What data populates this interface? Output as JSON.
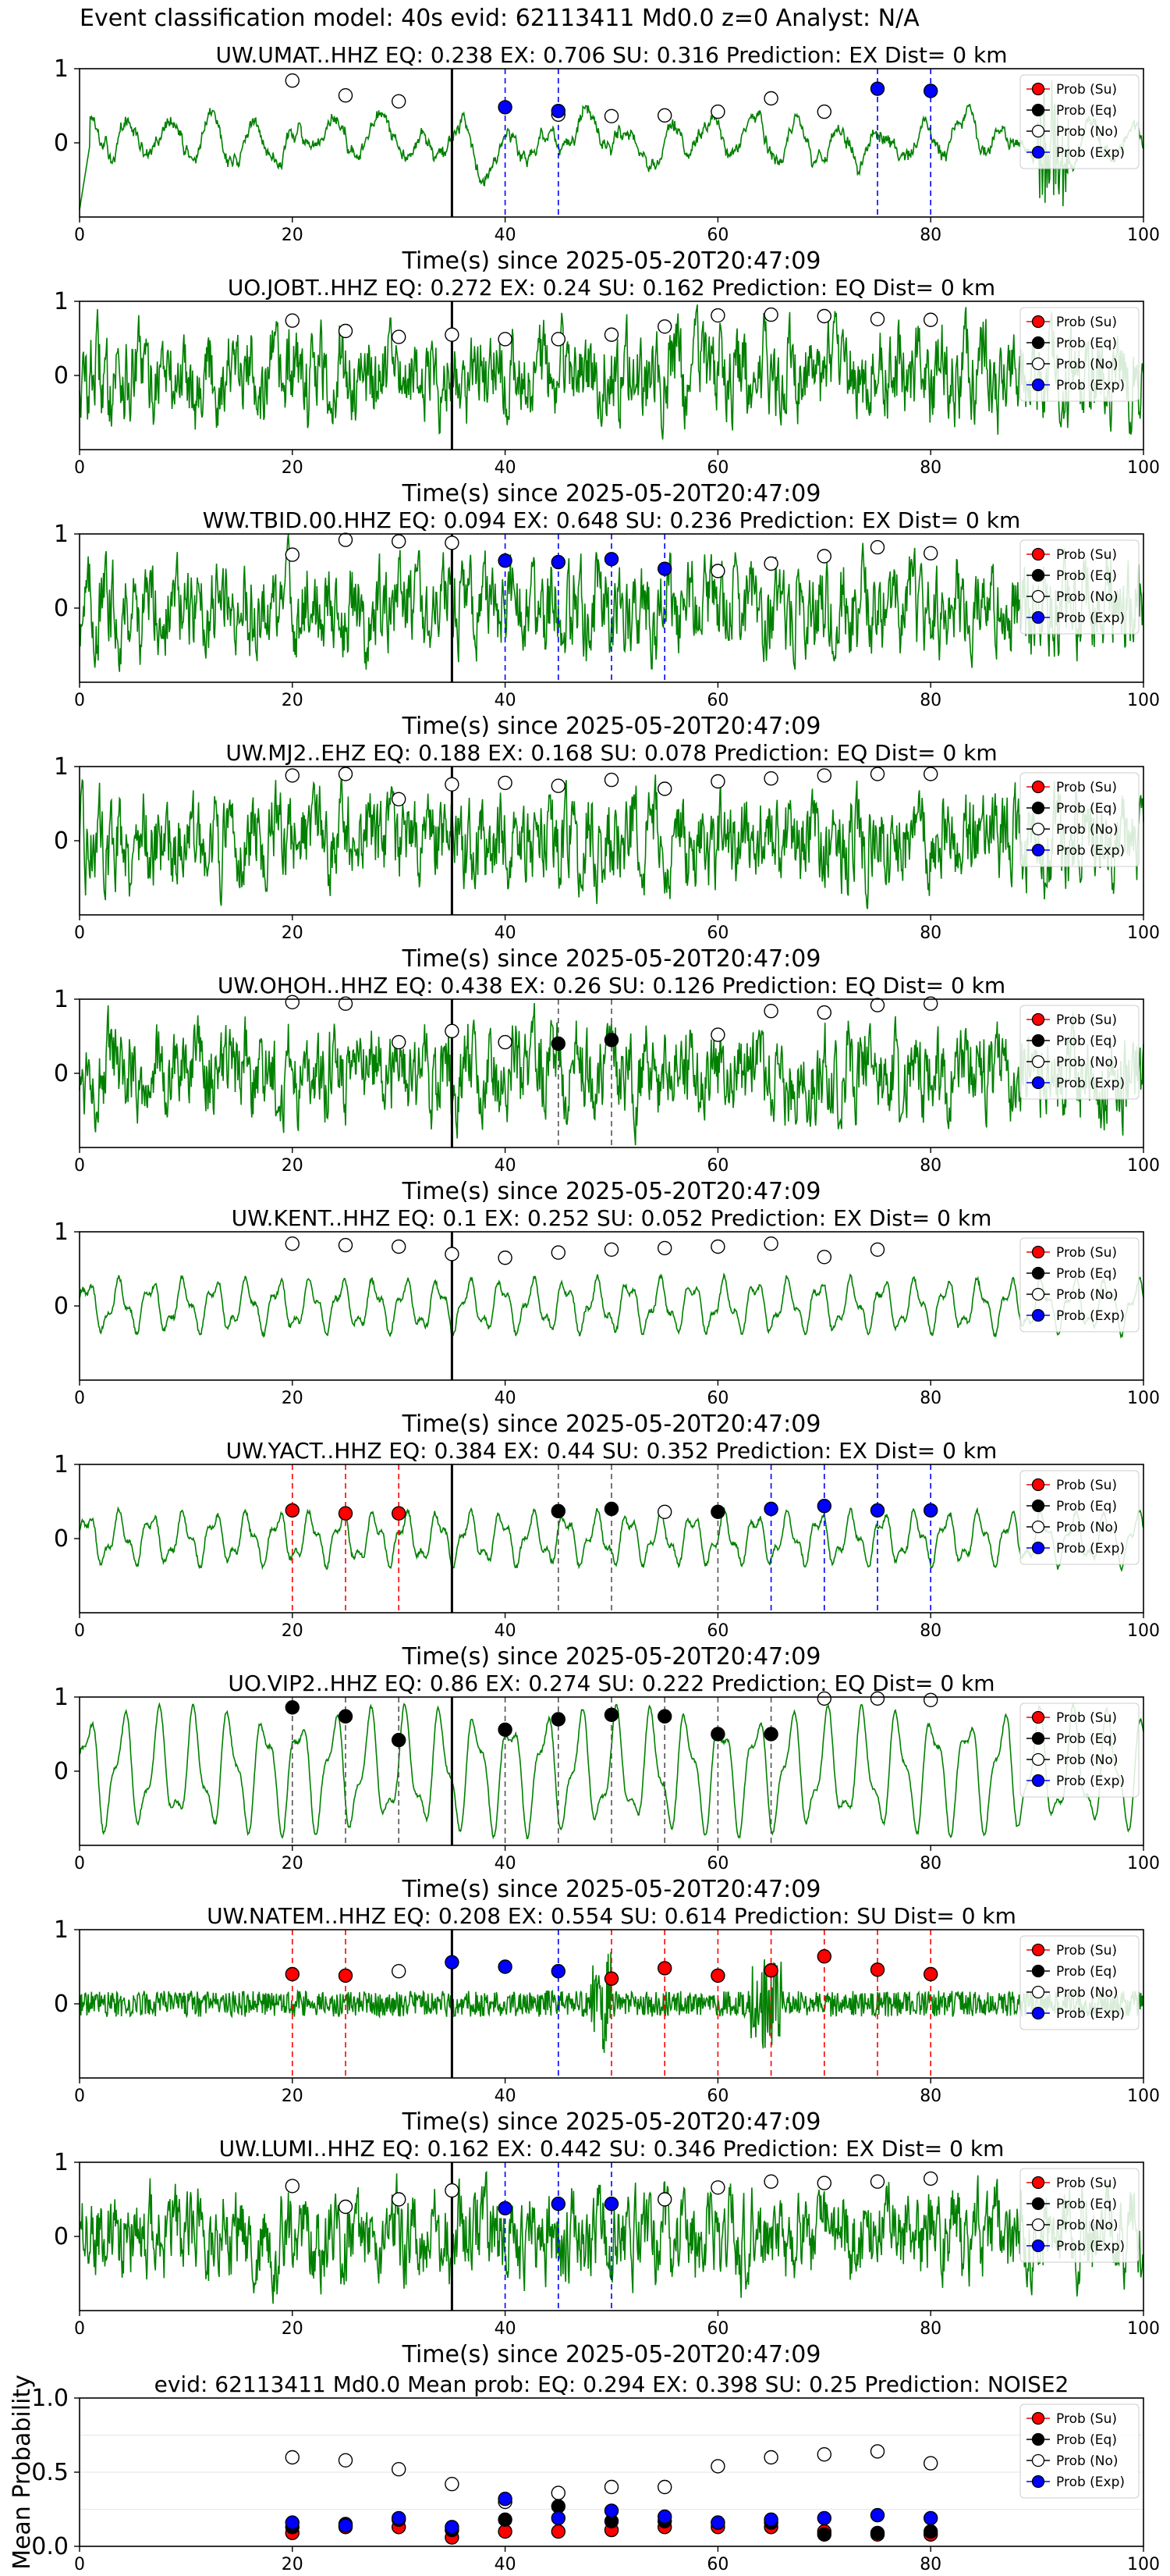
{
  "page": {
    "title": "Event classification model: 40s evid: 62113411 Md0.0 z=0 Analyst: N/A"
  },
  "colors": {
    "trace": "#008000",
    "su": "#ff0000",
    "eq": "#000000",
    "no": "#ffffff",
    "exp": "#0000ff",
    "su_line": "#ff0000",
    "eq_line": "#555555",
    "exp_line": "#0000ff",
    "onset_line": "#000000"
  },
  "legend": [
    "Prob (Su)",
    "Prob (Eq)",
    "Prob (No)",
    "Prob (Exp)"
  ],
  "chart_data": [
    {
      "type": "line",
      "title": "UW.UMAT..HHZ   EQ: 0.238  EX: 0.706  SU: 0.316   Prediction: EX    Dist= 0 km",
      "xlabel": "Time(s) since 2025-05-20T20:47:09",
      "xlim": [
        0,
        100
      ],
      "ylim": [
        -1,
        1
      ],
      "xticks": [
        0,
        20,
        40,
        60,
        80,
        100
      ],
      "yticks": [
        0,
        1
      ],
      "onset": 35,
      "trace_style": "smooth",
      "legend": "upper-right",
      "series": [
        {
          "name": "Prob (No)",
          "x": [
            20,
            25,
            30,
            45,
            50,
            55,
            60,
            65,
            70
          ],
          "values": [
            0.84,
            0.64,
            0.56,
            0.38,
            0.36,
            0.37,
            0.42,
            0.6,
            0.42
          ]
        },
        {
          "name": "Prob (Exp)",
          "x": [
            40,
            45,
            75,
            80
          ],
          "values": [
            0.48,
            0.43,
            0.73,
            0.7
          ]
        }
      ],
      "vlines": [
        {
          "x": 40,
          "color": "exp"
        },
        {
          "x": 45,
          "color": "exp"
        },
        {
          "x": 75,
          "color": "exp"
        },
        {
          "x": 80,
          "color": "exp"
        }
      ]
    },
    {
      "type": "line",
      "title": "UO.JOBT..HHZ   EQ: 0.272  EX: 0.24  SU: 0.162   Prediction: EQ    Dist= 0 km",
      "xlabel": "Time(s) since 2025-05-20T20:47:09",
      "xlim": [
        0,
        100
      ],
      "ylim": [
        -1,
        1
      ],
      "xticks": [
        0,
        20,
        40,
        60,
        80,
        100
      ],
      "yticks": [
        0,
        1
      ],
      "onset": 35,
      "trace_style": "noisy",
      "legend": "upper-right",
      "series": [
        {
          "name": "Prob (No)",
          "x": [
            20,
            25,
            30,
            35,
            40,
            45,
            50,
            55,
            60,
            65,
            70,
            75,
            80
          ],
          "values": [
            0.74,
            0.6,
            0.52,
            0.55,
            0.49,
            0.49,
            0.55,
            0.66,
            0.81,
            0.82,
            0.8,
            0.76,
            0.75
          ]
        }
      ],
      "vlines": []
    },
    {
      "type": "line",
      "title": "WW.TBID.00.HHZ   EQ: 0.094  EX: 0.648  SU: 0.236   Prediction: EX    Dist= 0 km",
      "xlabel": "Time(s) since 2025-05-20T20:47:09",
      "xlim": [
        0,
        100
      ],
      "ylim": [
        -1,
        1
      ],
      "xticks": [
        0,
        20,
        40,
        60,
        80,
        100
      ],
      "yticks": [
        0,
        1
      ],
      "onset": 35,
      "trace_style": "noisy",
      "legend": "upper-right",
      "series": [
        {
          "name": "Prob (No)",
          "x": [
            20,
            25,
            30,
            35,
            60,
            65,
            70,
            75,
            80
          ],
          "values": [
            0.72,
            0.92,
            0.9,
            0.88,
            0.5,
            0.6,
            0.7,
            0.82,
            0.74
          ]
        },
        {
          "name": "Prob (Exp)",
          "x": [
            40,
            45,
            50,
            55
          ],
          "values": [
            0.64,
            0.62,
            0.66,
            0.53
          ]
        }
      ],
      "vlines": [
        {
          "x": 40,
          "color": "exp"
        },
        {
          "x": 45,
          "color": "exp"
        },
        {
          "x": 50,
          "color": "exp"
        },
        {
          "x": 55,
          "color": "exp"
        }
      ]
    },
    {
      "type": "line",
      "title": "UW.MJ2..EHZ   EQ: 0.188  EX: 0.168  SU: 0.078   Prediction: EQ    Dist= 0 km",
      "xlabel": "Time(s) since 2025-05-20T20:47:09",
      "xlim": [
        0,
        100
      ],
      "ylim": [
        -1,
        1
      ],
      "xticks": [
        0,
        20,
        40,
        60,
        80,
        100
      ],
      "yticks": [
        0,
        1
      ],
      "onset": 35,
      "trace_style": "noisy",
      "legend": "upper-right",
      "series": [
        {
          "name": "Prob (No)",
          "x": [
            20,
            25,
            30,
            35,
            40,
            45,
            50,
            55,
            60,
            65,
            70,
            75,
            80
          ],
          "values": [
            0.88,
            0.9,
            0.56,
            0.76,
            0.78,
            0.74,
            0.82,
            0.7,
            0.8,
            0.84,
            0.88,
            0.9,
            0.9
          ]
        }
      ],
      "vlines": []
    },
    {
      "type": "line",
      "title": "UW.OHOH..HHZ   EQ: 0.438  EX: 0.26  SU: 0.126   Prediction: EQ    Dist= 0 km",
      "xlabel": "Time(s) since 2025-05-20T20:47:09",
      "xlim": [
        0,
        100
      ],
      "ylim": [
        -1,
        1
      ],
      "xticks": [
        0,
        20,
        40,
        60,
        80,
        100
      ],
      "yticks": [
        0,
        1
      ],
      "onset": 35,
      "trace_style": "noisy",
      "legend": "upper-right",
      "series": [
        {
          "name": "Prob (No)",
          "x": [
            20,
            25,
            30,
            35,
            40,
            60,
            65,
            70,
            75,
            80
          ],
          "values": [
            0.96,
            0.94,
            0.42,
            0.57,
            0.42,
            0.52,
            0.84,
            0.82,
            0.92,
            0.94
          ]
        },
        {
          "name": "Prob (Eq)",
          "x": [
            45,
            50
          ],
          "values": [
            0.4,
            0.45
          ]
        }
      ],
      "vlines": [
        {
          "x": 45,
          "color": "eq"
        },
        {
          "x": 50,
          "color": "eq"
        }
      ]
    },
    {
      "type": "line",
      "title": "UW.KENT..HHZ   EQ: 0.1  EX: 0.252  SU: 0.052   Prediction: EX    Dist= 0 km",
      "xlabel": "Time(s) since 2025-05-20T20:47:09",
      "xlim": [
        0,
        100
      ],
      "ylim": [
        -1,
        1
      ],
      "xticks": [
        0,
        20,
        40,
        60,
        80,
        100
      ],
      "yticks": [
        0,
        1
      ],
      "onset": 35,
      "trace_style": "wave",
      "legend": "upper-right",
      "series": [
        {
          "name": "Prob (No)",
          "x": [
            20,
            25,
            30,
            35,
            40,
            45,
            50,
            55,
            60,
            65,
            70,
            75
          ],
          "values": [
            0.84,
            0.82,
            0.8,
            0.7,
            0.65,
            0.72,
            0.76,
            0.78,
            0.8,
            0.84,
            0.66,
            0.76
          ]
        }
      ],
      "vlines": []
    },
    {
      "type": "line",
      "title": "UW.YACT..HHZ   EQ: 0.384  EX: 0.44  SU: 0.352   Prediction: EX    Dist= 0 km",
      "xlabel": "Time(s) since 2025-05-20T20:47:09",
      "xlim": [
        0,
        100
      ],
      "ylim": [
        -1,
        1
      ],
      "xticks": [
        0,
        20,
        40,
        60,
        80,
        100
      ],
      "yticks": [
        0,
        1
      ],
      "onset": 35,
      "trace_style": "wave",
      "legend": "upper-right",
      "series": [
        {
          "name": "Prob (Su)",
          "x": [
            20,
            25,
            30
          ],
          "values": [
            0.38,
            0.34,
            0.34
          ]
        },
        {
          "name": "Prob (Eq)",
          "x": [
            45,
            50,
            60
          ],
          "values": [
            0.37,
            0.4,
            0.36
          ]
        },
        {
          "name": "Prob (No)",
          "x": [
            55
          ],
          "values": [
            0.36
          ]
        },
        {
          "name": "Prob (Exp)",
          "x": [
            65,
            70,
            75,
            80
          ],
          "values": [
            0.4,
            0.44,
            0.38,
            0.38
          ]
        }
      ],
      "vlines": [
        {
          "x": 20,
          "color": "su"
        },
        {
          "x": 25,
          "color": "su"
        },
        {
          "x": 30,
          "color": "su"
        },
        {
          "x": 45,
          "color": "eq"
        },
        {
          "x": 50,
          "color": "eq"
        },
        {
          "x": 60,
          "color": "eq"
        },
        {
          "x": 65,
          "color": "exp"
        },
        {
          "x": 70,
          "color": "exp"
        },
        {
          "x": 75,
          "color": "exp"
        },
        {
          "x": 80,
          "color": "exp"
        }
      ]
    },
    {
      "type": "line",
      "title": "UO.VIP2..HHZ   EQ: 0.86  EX: 0.274  SU: 0.222   Prediction: EQ    Dist= 0 km",
      "xlabel": "Time(s) since 2025-05-20T20:47:09",
      "xlim": [
        0,
        100
      ],
      "ylim": [
        -1,
        1
      ],
      "xticks": [
        0,
        20,
        40,
        60,
        80,
        100
      ],
      "yticks": [
        0,
        1
      ],
      "onset": 35,
      "trace_style": "bigwave",
      "legend": "upper-right",
      "series": [
        {
          "name": "Prob (Eq)",
          "x": [
            20,
            25,
            30,
            40,
            45,
            50,
            55,
            60,
            65
          ],
          "values": [
            0.86,
            0.74,
            0.42,
            0.56,
            0.7,
            0.76,
            0.74,
            0.5,
            0.5
          ]
        },
        {
          "name": "Prob (No)",
          "x": [
            70,
            75,
            80
          ],
          "values": [
            0.98,
            0.98,
            0.96
          ]
        }
      ],
      "vlines": [
        {
          "x": 20,
          "color": "eq"
        },
        {
          "x": 25,
          "color": "eq"
        },
        {
          "x": 30,
          "color": "eq"
        },
        {
          "x": 40,
          "color": "eq"
        },
        {
          "x": 45,
          "color": "eq"
        },
        {
          "x": 50,
          "color": "eq"
        },
        {
          "x": 55,
          "color": "eq"
        },
        {
          "x": 60,
          "color": "eq"
        },
        {
          "x": 65,
          "color": "eq"
        }
      ]
    },
    {
      "type": "line",
      "title": "UW.NATEM..HHZ   EQ: 0.208  EX: 0.554  SU: 0.614   Prediction: SU    Dist= 0 km",
      "xlabel": "Time(s) since 2025-05-20T20:47:09",
      "xlim": [
        0,
        100
      ],
      "ylim": [
        -1,
        1
      ],
      "xticks": [
        0,
        20,
        40,
        60,
        80,
        100
      ],
      "yticks": [
        0,
        1
      ],
      "onset": 35,
      "trace_style": "quiet",
      "legend": "upper-right",
      "series": [
        {
          "name": "Prob (Su)",
          "x": [
            20,
            25,
            50,
            55,
            60,
            65,
            70,
            75,
            80
          ],
          "values": [
            0.4,
            0.38,
            0.34,
            0.48,
            0.38,
            0.45,
            0.64,
            0.46,
            0.4
          ]
        },
        {
          "name": "Prob (No)",
          "x": [
            30
          ],
          "values": [
            0.44
          ]
        },
        {
          "name": "Prob (Exp)",
          "x": [
            35,
            40,
            45
          ],
          "values": [
            0.56,
            0.5,
            0.44
          ]
        }
      ],
      "vlines": [
        {
          "x": 20,
          "color": "su"
        },
        {
          "x": 25,
          "color": "su"
        },
        {
          "x": 45,
          "color": "exp"
        },
        {
          "x": 50,
          "color": "su"
        },
        {
          "x": 55,
          "color": "su"
        },
        {
          "x": 60,
          "color": "su"
        },
        {
          "x": 65,
          "color": "su"
        },
        {
          "x": 70,
          "color": "su"
        },
        {
          "x": 75,
          "color": "su"
        },
        {
          "x": 80,
          "color": "su"
        }
      ]
    },
    {
      "type": "line",
      "title": "UW.LUMI..HHZ   EQ: 0.162  EX: 0.442  SU: 0.346   Prediction: EX    Dist= 0 km",
      "xlabel": "Time(s) since 2025-05-20T20:47:09",
      "xlim": [
        0,
        100
      ],
      "ylim": [
        -1,
        1
      ],
      "xticks": [
        0,
        20,
        40,
        60,
        80,
        100
      ],
      "yticks": [
        0,
        1
      ],
      "onset": 35,
      "trace_style": "noisy",
      "legend": "upper-right",
      "series": [
        {
          "name": "Prob (No)",
          "x": [
            20,
            25,
            30,
            35,
            55,
            60,
            65,
            70,
            75,
            80
          ],
          "values": [
            0.68,
            0.4,
            0.5,
            0.62,
            0.5,
            0.66,
            0.74,
            0.72,
            0.74,
            0.78
          ]
        },
        {
          "name": "Prob (Exp)",
          "x": [
            40,
            45,
            50
          ],
          "values": [
            0.38,
            0.44,
            0.44
          ]
        }
      ],
      "vlines": [
        {
          "x": 40,
          "color": "exp"
        },
        {
          "x": 45,
          "color": "exp"
        },
        {
          "x": 50,
          "color": "exp"
        }
      ]
    },
    {
      "type": "scatter",
      "title": "evid: 62113411  Md0.0   Mean prob:   EQ: 0.294  EX: 0.398  SU: 0.25   Prediction: NOISE2",
      "ylabel": "Mean Probability",
      "xlim": [
        0,
        100
      ],
      "ylim": [
        0,
        1
      ],
      "xticks": [
        0,
        20,
        40,
        60,
        80,
        100
      ],
      "yticks": [
        0.0,
        0.5,
        1.0
      ],
      "grid": true,
      "legend": "upper-right",
      "series": [
        {
          "name": "Prob (Su)",
          "x": [
            20,
            25,
            30,
            35,
            40,
            45,
            50,
            55,
            60,
            65,
            70,
            75,
            80
          ],
          "values": [
            0.09,
            0.13,
            0.13,
            0.06,
            0.1,
            0.1,
            0.11,
            0.13,
            0.13,
            0.13,
            0.1,
            0.08,
            0.08
          ]
        },
        {
          "name": "Prob (Eq)",
          "x": [
            20,
            25,
            30,
            35,
            40,
            45,
            50,
            55,
            60,
            65,
            70,
            75,
            80
          ],
          "values": [
            0.13,
            0.15,
            0.18,
            0.11,
            0.18,
            0.27,
            0.17,
            0.17,
            0.16,
            0.16,
            0.08,
            0.09,
            0.1
          ]
        },
        {
          "name": "Prob (No)",
          "x": [
            20,
            25,
            30,
            35,
            40,
            45,
            50,
            55,
            60,
            65,
            70,
            75,
            80
          ],
          "values": [
            0.6,
            0.58,
            0.52,
            0.42,
            0.3,
            0.36,
            0.4,
            0.4,
            0.54,
            0.6,
            0.62,
            0.64,
            0.56
          ]
        },
        {
          "name": "Prob (Exp)",
          "x": [
            20,
            25,
            30,
            35,
            40,
            45,
            50,
            55,
            60,
            65,
            70,
            75,
            80
          ],
          "values": [
            0.16,
            0.14,
            0.19,
            0.13,
            0.32,
            0.19,
            0.24,
            0.2,
            0.16,
            0.18,
            0.19,
            0.21,
            0.19
          ]
        }
      ]
    }
  ]
}
